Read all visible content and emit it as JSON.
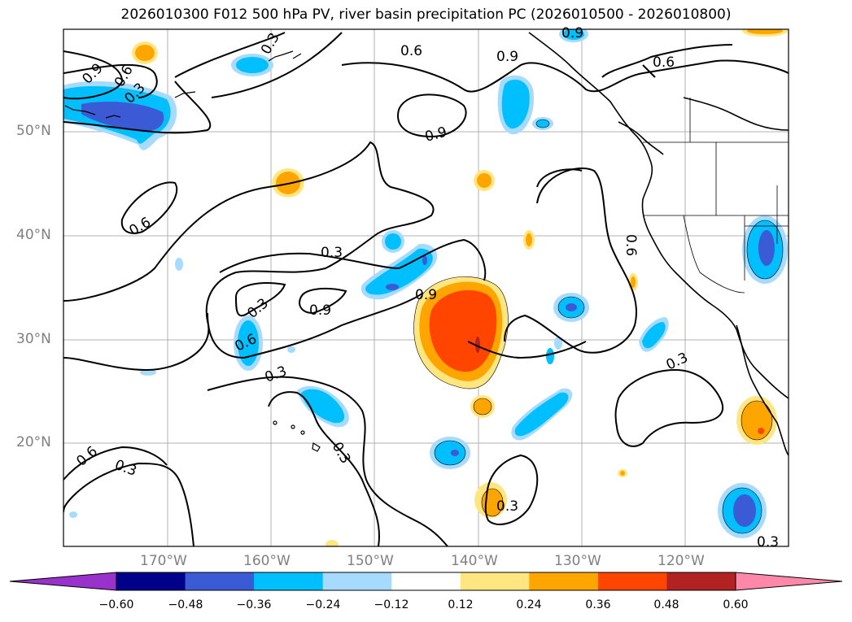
{
  "title": "2026010300 F012 500 hPa PV, river basin precipitation PC (2026010500 - 2026010800)",
  "colors": {
    "land_line": "#000000",
    "grid": "#b0b0b0",
    "contour": "#000000",
    "pos1": "#ffe680",
    "pos2": "#ffa500",
    "pos3": "#ff4500",
    "neg1": "#a6dbff",
    "neg2": "#00bfff",
    "neg3": "#3b5bd6"
  },
  "lat_labels": [
    "50°N",
    "40°N",
    "30°N",
    "20°N"
  ],
  "lon_labels": [
    "170°W",
    "160°W",
    "150°W",
    "140°W",
    "130°W",
    "120°W"
  ],
  "contour_labels": [
    "0.3",
    "0.6",
    "0.9",
    "0.6",
    "0.9",
    "0.6",
    "0.3",
    "0.6",
    "0.3",
    "0.9",
    "0.9",
    "0.9",
    "0.6",
    "0.3",
    "0.3",
    "0.6",
    "0.3",
    "0.3",
    "0.6",
    "0.3",
    "0.3",
    "0.9",
    "0.3"
  ],
  "colorbar": {
    "colors": [
      "#9932cc",
      "#00008b",
      "#3b5bd6",
      "#00bfff",
      "#a6dbff",
      "#ffffff",
      "#ffe680",
      "#ffa500",
      "#ff4500",
      "#b22222",
      "#ff88aa",
      "#ff88aa"
    ],
    "tick_labels": [
      "−0.60",
      "−0.48",
      "−0.36",
      "−0.24",
      "−0.12",
      "0.12",
      "0.24",
      "0.36",
      "0.48",
      "0.60"
    ]
  }
}
